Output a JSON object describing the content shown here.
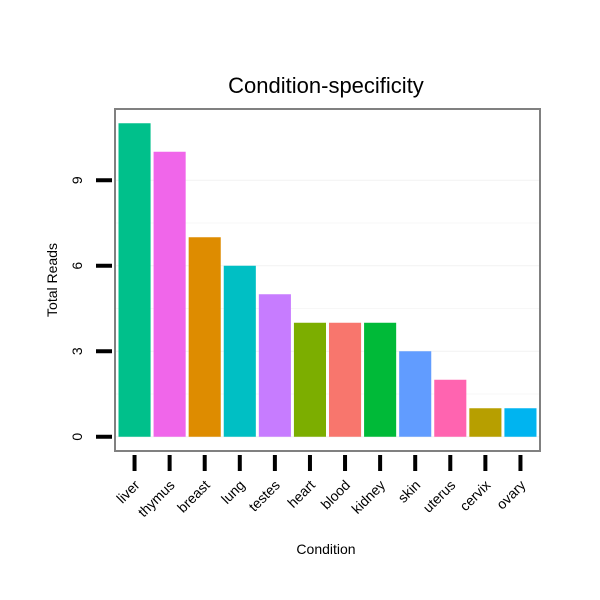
{
  "chart_data": {
    "type": "bar",
    "title": "Condition-specificity",
    "xlabel": "Condition",
    "ylabel": "Total Reads",
    "ylim": [
      -0.5,
      11.5
    ],
    "yticks": [
      0,
      3,
      6,
      9
    ],
    "grid": true,
    "legend": "none",
    "categories": [
      "liver",
      "thymus",
      "breast",
      "lung",
      "testes",
      "heart",
      "blood",
      "kidney",
      "skin",
      "uterus",
      "cervix",
      "ovary"
    ],
    "values": [
      11,
      10,
      7,
      6,
      5,
      4,
      4,
      4,
      3,
      2,
      1,
      1
    ],
    "colors": [
      "#00C08B",
      "#F066EA",
      "#DE8C00",
      "#00BFC4",
      "#C77CFF",
      "#7CAE00",
      "#F8766D",
      "#00BA38",
      "#619CFF",
      "#FF64B0",
      "#B79F00",
      "#00B4F0"
    ]
  }
}
